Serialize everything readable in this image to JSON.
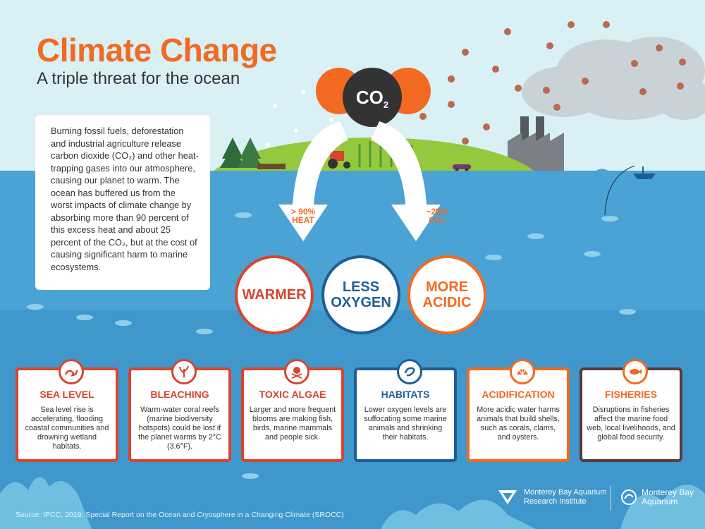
{
  "header": {
    "title": "Climate Change",
    "subtitle": "A triple threat for the ocean"
  },
  "intro": {
    "text": "Burning fossil fuels, deforestation and industrial agriculture release carbon dioxide (CO₂) and other heat-trapping gases into our atmosphere, causing our planet to warm. The ocean has buffered us from the worst impacts of climate change by absorbing more than 90 percent of this excess heat and about 25 percent of the CO₂, but at the cost of causing significant harm to marine ecosystems."
  },
  "co2": {
    "symbol": "CO",
    "subscript": "2"
  },
  "arrows": {
    "heat_line1": "> 90%",
    "heat_line2": "HEAT",
    "co2_line1": "~25%",
    "co2_line2": "CO₂"
  },
  "impacts": [
    {
      "line1": "WARMER",
      "line2": "",
      "color": "#d7452e"
    },
    {
      "line1": "LESS",
      "line2": "OXYGEN",
      "color": "#1f5d94"
    },
    {
      "line1": "MORE",
      "line2": "ACIDIC",
      "color": "#f26a21"
    }
  ],
  "cards": [
    {
      "title": "SEA LEVEL",
      "text": "Sea level rise is accelerating, flooding coastal communities and drowning wetland habitats.",
      "color": "#d7452e",
      "icon": "wave-icon"
    },
    {
      "title": "BLEACHING",
      "text": "Warm-water coral reefs (marine biodiversity hotspots) could be lost if the planet warms by 2°C (3.6°F).",
      "color": "#d7452e",
      "icon": "coral-icon"
    },
    {
      "title": "TOXIC ALGAE",
      "text": "Larger and more frequent blooms are making fish, birds, marine mammals and people sick.",
      "color": "#d7452e",
      "icon": "skull-crossbones-icon"
    },
    {
      "title": "HABITATS",
      "text": "Lower oxygen levels are suffocating some marine animals and shrinking their habitats.",
      "color": "#1f5d94",
      "icon": "shrimp-icon"
    },
    {
      "title": "ACIDIFICATION",
      "text": "More acidic water harms animals that build shells, such as corals, clams, and oysters.",
      "color": "#f26a21",
      "icon": "shell-icon"
    },
    {
      "title": "FISHERIES",
      "text": "Disruptions in fisheries affect the marine food web, local livelihoods, and global food security.",
      "color": "#f26a21",
      "icon": "fish-icon"
    }
  ],
  "footer": {
    "source": "Source: IPCC, 2019: Special Report on the Ocean and Cryosphere in a Changing Climate (SROCC)",
    "logo1_line1": "Monterey Bay Aquarium",
    "logo1_line2": "Research Institute",
    "logo2_line1": "Monterey Bay",
    "logo2_line2": "Aquarium"
  },
  "colors": {
    "title_orange": "#f26a21",
    "red": "#d7452e",
    "navy": "#1f5d94",
    "ocean": "#4aa3d4",
    "land": "#94c83d",
    "sky": "#d9f0f4"
  }
}
